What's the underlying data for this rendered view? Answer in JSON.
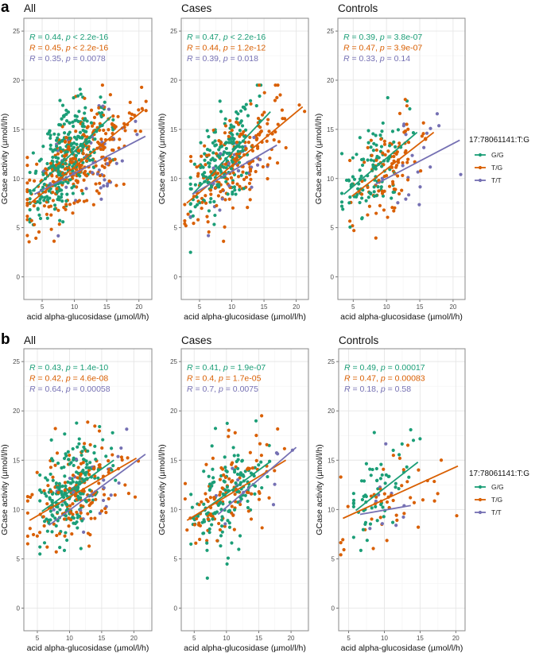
{
  "figure": {
    "panel_labels": [
      "a",
      "b"
    ]
  },
  "legend": {
    "title": "17:78061141:T:G",
    "items": [
      {
        "label": "G/G",
        "color": "#1b9e77"
      },
      {
        "label": "T/G",
        "color": "#d95f02"
      },
      {
        "label": "T/T",
        "color": "#7570b3"
      }
    ]
  },
  "chart_data": [
    {
      "panel": "a",
      "title": "All",
      "type": "scatter",
      "xlabel": "acid alpha-glucosidase (µmol/l/h)",
      "ylabel": "GCase activity (µmol/l/h)",
      "xticks": [
        5,
        10,
        15,
        20
      ],
      "yticks": [
        0,
        5,
        10,
        15,
        20,
        25
      ],
      "xlim": [
        2.16,
        22.0
      ],
      "ylim": [
        -2.3,
        26.3
      ],
      "grid": true,
      "stats": [
        {
          "group": "G/G",
          "R": "0.44",
          "p_op": "<",
          "p": "2.2e-16"
        },
        {
          "group": "T/G",
          "R": "0.45",
          "p_op": "<",
          "p": "2.2e-16"
        },
        {
          "group": "T/T",
          "R": "0.35",
          "p_op": "=",
          "p": "0.0078"
        }
      ],
      "fits": [
        {
          "group": "G/G",
          "x": [
            3.4,
            15.7
          ],
          "y": [
            8.7,
            16.3
          ]
        },
        {
          "group": "T/G",
          "x": [
            3.0,
            20.8
          ],
          "y": [
            7.4,
            17.0
          ]
        },
        {
          "group": "T/T",
          "x": [
            3.8,
            21.0
          ],
          "y": [
            8.4,
            14.3
          ]
        }
      ],
      "approx_point_counts": {
        "G/G": 300,
        "T/G": 290,
        "T/T": 45
      }
    },
    {
      "panel": "a",
      "title": "Cases",
      "type": "scatter",
      "xlabel": "acid alpha-glucosidase (µmol/l/h)",
      "ylabel": "GCase activity (µmol/l/h)",
      "xticks": [
        5,
        10,
        15,
        20
      ],
      "yticks": [
        0,
        5,
        10,
        15,
        20,
        25
      ],
      "xlim": [
        2.16,
        21.9
      ],
      "ylim": [
        -2.3,
        26.3
      ],
      "grid": true,
      "stats": [
        {
          "group": "G/G",
          "R": "0.47",
          "p_op": "<",
          "p": "2.2e-16"
        },
        {
          "group": "T/G",
          "R": "0.44",
          "p_op": "=",
          "p": "1.2e-12"
        },
        {
          "group": "T/T",
          "R": "0.39",
          "p_op": "=",
          "p": "0.018"
        }
      ],
      "fits": [
        {
          "group": "G/G",
          "x": [
            3.9,
            16.0
          ],
          "y": [
            8.4,
            16.8
          ]
        },
        {
          "group": "T/G",
          "x": [
            3.0,
            21.0
          ],
          "y": [
            7.5,
            17.3
          ]
        },
        {
          "group": "T/T",
          "x": [
            3.9,
            17.0
          ],
          "y": [
            8.4,
            13.4
          ]
        }
      ],
      "approx_point_counts": {
        "G/G": 200,
        "T/G": 190,
        "T/T": 30
      }
    },
    {
      "panel": "a",
      "title": "Controls",
      "type": "scatter",
      "xlabel": "acid alpha-glucosidase (µmol/l/h)",
      "ylabel": "GCase activity (µmol/l/h)",
      "xticks": [
        5,
        10,
        15,
        20
      ],
      "yticks": [
        0,
        5,
        10,
        15,
        20,
        25
      ],
      "xlim": [
        2.7,
        21.8
      ],
      "ylim": [
        -2.3,
        26.3
      ],
      "grid": true,
      "stats": [
        {
          "group": "G/G",
          "R": "0.39",
          "p_op": "=",
          "p": "3.8e-07"
        },
        {
          "group": "T/G",
          "R": "0.47",
          "p_op": "=",
          "p": "3.9e-07"
        },
        {
          "group": "T/T",
          "R": "0.33",
          "p_op": "=",
          "p": "0.14"
        }
      ],
      "fits": [
        {
          "group": "G/G",
          "x": [
            3.6,
            14.6
          ],
          "y": [
            8.4,
            14.7
          ]
        },
        {
          "group": "T/G",
          "x": [
            4.8,
            17.1
          ],
          "y": [
            8.2,
            14.7
          ]
        },
        {
          "group": "T/T",
          "x": [
            8.3,
            21.0
          ],
          "y": [
            9.4,
            13.9
          ]
        }
      ],
      "approx_point_counts": {
        "G/G": 110,
        "T/G": 100,
        "T/T": 20
      }
    },
    {
      "panel": "b",
      "title": "All",
      "type": "scatter",
      "xlabel": "acid alpha-glucosidase (µmol/l/h)",
      "ylabel": "GCase activity (µmol/l/h)",
      "xticks": [
        5,
        10,
        15,
        20
      ],
      "yticks": [
        0,
        5,
        10,
        15,
        20,
        25
      ],
      "xlim": [
        2.9,
        22.8
      ],
      "ylim": [
        -2.3,
        26.3
      ],
      "grid": true,
      "stats": [
        {
          "group": "G/G",
          "R": "0.43",
          "p_op": "=",
          "p": "1.4e-10"
        },
        {
          "group": "T/G",
          "R": "0.42",
          "p_op": "=",
          "p": "4.6e-08"
        },
        {
          "group": "T/T",
          "R": "0.64",
          "p_op": "=",
          "p": "0.00058"
        }
      ],
      "fits": [
        {
          "group": "G/G",
          "x": [
            5.7,
            16.9
          ],
          "y": [
            9.8,
            15.0
          ]
        },
        {
          "group": "T/G",
          "x": [
            3.8,
            20.4
          ],
          "y": [
            8.9,
            15.2
          ]
        },
        {
          "group": "T/T",
          "x": [
            6.8,
            21.8
          ],
          "y": [
            8.4,
            15.6
          ]
        }
      ],
      "approx_point_counts": {
        "G/G": 200,
        "T/G": 150,
        "T/T": 25
      }
    },
    {
      "panel": "b",
      "title": "Cases",
      "type": "scatter",
      "xlabel": "acid alpha-glucosidase (µmol/l/h)",
      "ylabel": "GCase activity (µmol/l/h)",
      "xticks": [
        5,
        10,
        15,
        20
      ],
      "yticks": [
        0,
        5,
        10,
        15,
        20,
        25
      ],
      "xlim": [
        3.0,
        22.7
      ],
      "ylim": [
        -2.3,
        26.3
      ],
      "grid": true,
      "stats": [
        {
          "group": "G/G",
          "R": "0.41",
          "p_op": "=",
          "p": "1.9e-07"
        },
        {
          "group": "T/G",
          "R": "0.4",
          "p_op": "=",
          "p": "1.7e-05"
        },
        {
          "group": "T/T",
          "R": "0.7",
          "p_op": "=",
          "p": "0.0075"
        }
      ],
      "fits": [
        {
          "group": "G/G",
          "x": [
            4.8,
            16.9
          ],
          "y": [
            9.1,
            14.9
          ]
        },
        {
          "group": "T/G",
          "x": [
            3.9,
            19.2
          ],
          "y": [
            8.9,
            15.0
          ]
        },
        {
          "group": "T/T",
          "x": [
            8.7,
            20.8
          ],
          "y": [
            9.5,
            16.3
          ]
        }
      ],
      "approx_point_counts": {
        "G/G": 140,
        "T/G": 100,
        "T/T": 15
      }
    },
    {
      "panel": "b",
      "title": "Controls",
      "type": "scatter",
      "xlabel": "acid alpha-glucosidase (µmol/l/h)",
      "ylabel": "GCase activity (µmol/l/h)",
      "xticks": [
        5,
        10,
        15,
        20
      ],
      "yticks": [
        0,
        5,
        10,
        15,
        20,
        25
      ],
      "xlim": [
        3.6,
        21.3
      ],
      "ylim": [
        -2.3,
        26.3
      ],
      "grid": true,
      "stats": [
        {
          "group": "G/G",
          "R": "0.49",
          "p_op": "=",
          "p": "0.00017"
        },
        {
          "group": "T/G",
          "R": "0.47",
          "p_op": "=",
          "p": "0.00083"
        },
        {
          "group": "T/T",
          "R": "0.18",
          "p_op": "=",
          "p": "0.58"
        }
      ],
      "fits": [
        {
          "group": "G/G",
          "x": [
            6.0,
            14.7
          ],
          "y": [
            9.9,
            14.8
          ]
        },
        {
          "group": "T/G",
          "x": [
            4.2,
            20.3
          ],
          "y": [
            9.1,
            14.4
          ]
        },
        {
          "group": "T/T",
          "x": [
            6.6,
            13.7
          ],
          "y": [
            9.5,
            10.4
          ]
        }
      ],
      "approx_point_counts": {
        "G/G": 60,
        "T/G": 45,
        "T/T": 10
      }
    }
  ]
}
